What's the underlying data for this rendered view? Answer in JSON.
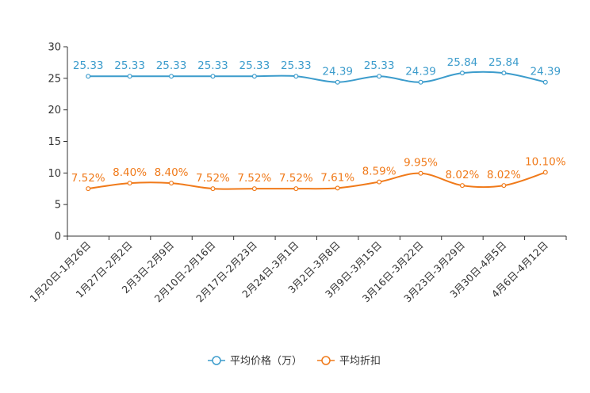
{
  "chart_data": {
    "type": "line",
    "categories": [
      "1月20日-1月26日",
      "1月27日-2月2日",
      "2月3日-2月9日",
      "2月10日-2月16日",
      "2月17日-2月23日",
      "2月24日-3月1日",
      "3月2日-3月8日",
      "3月9日-3月15日",
      "3月16日-3月22日",
      "3月23日-3月29日",
      "3月30日-4月5日",
      "4月6日-4月12日"
    ],
    "ylim": [
      0,
      30
    ],
    "yticks": [
      0,
      5,
      10,
      15,
      20,
      25,
      30
    ],
    "series": [
      {
        "name": "平均价格（万）",
        "color": "#3c9ccc",
        "values": [
          25.33,
          25.33,
          25.33,
          25.33,
          25.33,
          25.33,
          24.39,
          25.33,
          24.39,
          25.84,
          25.84,
          24.39
        ],
        "labels": [
          "25.33",
          "25.33",
          "25.33",
          "25.33",
          "25.33",
          "25.33",
          "24.39",
          "25.33",
          "24.39",
          "25.84",
          "25.84",
          "24.39"
        ]
      },
      {
        "name": "平均折扣",
        "color": "#f07a1a",
        "values": [
          7.52,
          8.4,
          8.4,
          7.52,
          7.52,
          7.52,
          7.61,
          8.59,
          9.95,
          8.02,
          8.02,
          10.1
        ],
        "labels": [
          "7.52%",
          "8.40%",
          "8.40%",
          "7.52%",
          "7.52%",
          "7.52%",
          "7.61%",
          "8.59%",
          "9.95%",
          "8.02%",
          "8.02%",
          "10.10%"
        ]
      }
    ],
    "legend": "bottom-center",
    "grid": false
  }
}
